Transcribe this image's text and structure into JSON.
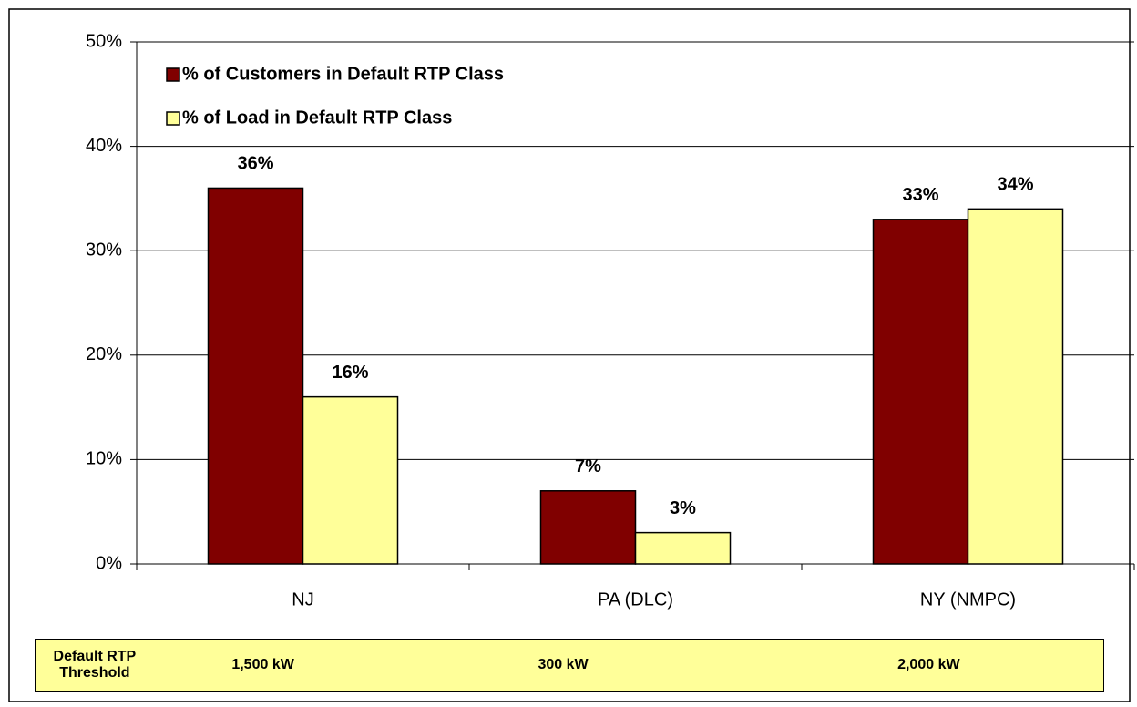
{
  "chart_data": {
    "type": "bar",
    "categories": [
      "NJ",
      "PA (DLC)",
      "NY (NMPC)"
    ],
    "series": [
      {
        "name": "% of Customers in Default RTP Class",
        "color": "#800000",
        "values": [
          36,
          7,
          33
        ],
        "value_labels": [
          "36%",
          "7%",
          "33%"
        ]
      },
      {
        "name": "% of Load in Default RTP Class",
        "color": "#ffff99",
        "values": [
          16,
          3,
          34
        ],
        "value_labels": [
          "16%",
          "3%",
          "34%"
        ]
      }
    ],
    "ylim": [
      0,
      50
    ],
    "yticks": [
      {
        "value": 0,
        "label": "0%"
      },
      {
        "value": 10,
        "label": "10%"
      },
      {
        "value": 20,
        "label": "20%"
      },
      {
        "value": 30,
        "label": "30%"
      },
      {
        "value": 40,
        "label": "40%"
      },
      {
        "value": 50,
        "label": "50%"
      }
    ],
    "grid": true,
    "legend": "top-left"
  },
  "table": {
    "header": "Default RTP Threshold",
    "cells": [
      "1,500 kW",
      "300 kW",
      "2,000 kW"
    ]
  }
}
